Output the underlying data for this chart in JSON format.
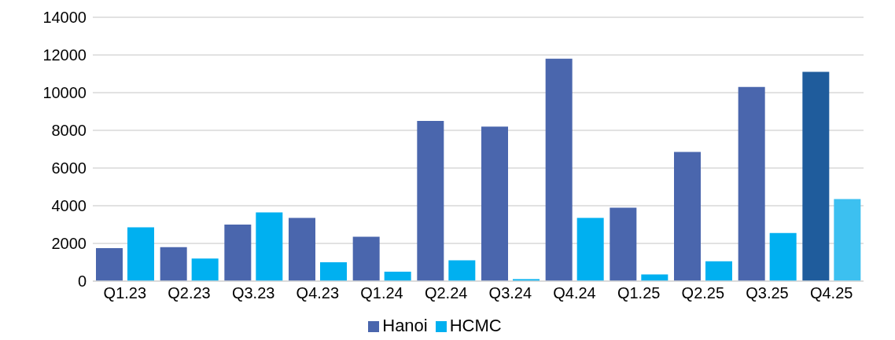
{
  "chart_data": {
    "type": "bar",
    "categories": [
      "Q1.23",
      "Q2.23",
      "Q3.23",
      "Q4.23",
      "Q1.24",
      "Q2.24",
      "Q3.24",
      "Q4.24",
      "Q1.25",
      "Q2.25",
      "Q3.25",
      "Q4.25"
    ],
    "series": [
      {
        "name": "Hanoi",
        "color": "#4a66ad",
        "colors": [
          "#4a66ad",
          "#4a66ad",
          "#4a66ad",
          "#4a66ad",
          "#4a66ad",
          "#4a66ad",
          "#4a66ad",
          "#4a66ad",
          "#4a66ad",
          "#4a66ad",
          "#4a66ad",
          "#1f5c9c"
        ],
        "values": [
          1750,
          1800,
          3000,
          3350,
          2350,
          8500,
          8200,
          11800,
          3900,
          6850,
          10300,
          11100
        ]
      },
      {
        "name": "HCMC",
        "color": "#00b0f0",
        "colors": [
          "#00b0f0",
          "#00b0f0",
          "#00b0f0",
          "#00b0f0",
          "#00b0f0",
          "#00b0f0",
          "#00b0f0",
          "#00b0f0",
          "#00b0f0",
          "#00b0f0",
          "#00b0f0",
          "#3cc0f0"
        ],
        "values": [
          2850,
          1200,
          3650,
          1000,
          500,
          1100,
          100,
          3350,
          350,
          1050,
          2550,
          4350
        ]
      }
    ],
    "ylim": [
      0,
      14000
    ],
    "yticks": [
      0,
      2000,
      4000,
      6000,
      8000,
      10000,
      12000,
      14000
    ],
    "grid": "y",
    "legend": "bottom"
  }
}
